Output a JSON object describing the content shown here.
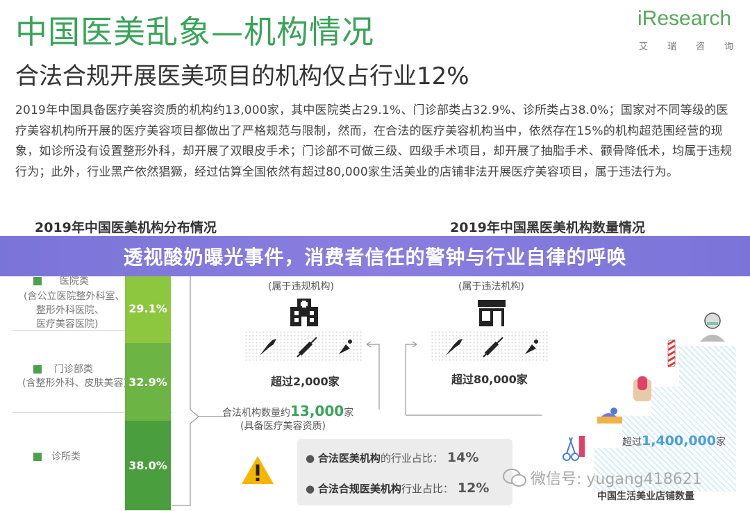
{
  "header": {
    "title": "中国医美乱象—机构情况",
    "subtitle": "合法合规开展医美项目的机构仅占行业12%",
    "logo_text": "iResearch",
    "logo_sub": [
      "艾",
      "瑞",
      "咨",
      "询"
    ]
  },
  "body_text": "2019年中国具备医疗美容资质的机构约13,000家，其中医院类占29.1%、门诊部类占32.9%、诊所类占38.0%；国家对不同等级的医疗美容机构所开展的医疗美容项目都做出了严格规范与限制，然而，在合法的医疗美容机构当中，依然存在15%的机构超范围经营的现象，如诊所没有设置整形外科，却开展了双眼皮手术；门诊部不可做三级、四级手术项目，却开展了抽脂手术、颧骨降低术，均属于违规行为；此外，行业黑产依然猖獗，经过估算全国依然有超过80,000家生活美业的店铺非法开展医疗美容项目，属于违法行为。",
  "left_chart": {
    "title": "2019年中国医美机构分布情况",
    "categories": [
      {
        "label": "医院类\n(含公立医院整外科室、\n整形外科医院、\n医疗美容医院)",
        "value": "29.1%"
      },
      {
        "label": "门诊部类\n(含整形外科、皮肤美容)",
        "value": "32.9%"
      },
      {
        "label": "诊所类",
        "value": "38.0%"
      }
    ]
  },
  "chart_data": {
    "type": "bar",
    "title": "2019年中国医美机构分布情况",
    "categories": [
      "医院类",
      "门诊部类",
      "诊所类"
    ],
    "values": [
      29.1,
      32.9,
      38.0
    ],
    "unit": "%"
  },
  "right_chart": {
    "title": "2019年中国黑医美机构数量情况",
    "col1_label": "(属于违规机构)",
    "col1_count": "超过2,000家",
    "col2_label": "(属于违法机构)",
    "col2_count": "超过80,000家",
    "legal_label_prefix": "合法机构数量约",
    "legal_number": "13,000",
    "legal_suffix": "家",
    "legal_sub": "(具备医疗美容资质)",
    "shops_prefix": "超过",
    "shops_number": "1,400,000",
    "shops_suffix": "家",
    "shops_caption": "中国生活美业店铺数量"
  },
  "notes": [
    {
      "bold": "合法医美机构",
      "rest": "的行业占比：",
      "pct": "14%"
    },
    {
      "bold": "合法合规医美机构",
      "rest": "行业占比：",
      "pct": "12%"
    }
  ],
  "banner": {
    "text": "透视酸奶曝光事件，消费者信任的警钟与行业自律的呼唤"
  },
  "watermark": {
    "text": "微信号: yugang418621"
  },
  "colors": {
    "green": "#3aa35a",
    "bar_light": "#8dc63f",
    "bar_mid": "#6cb443",
    "bar_dark": "#4a9e3d",
    "banner": "#7b74d8",
    "warn": "#f7b500"
  }
}
